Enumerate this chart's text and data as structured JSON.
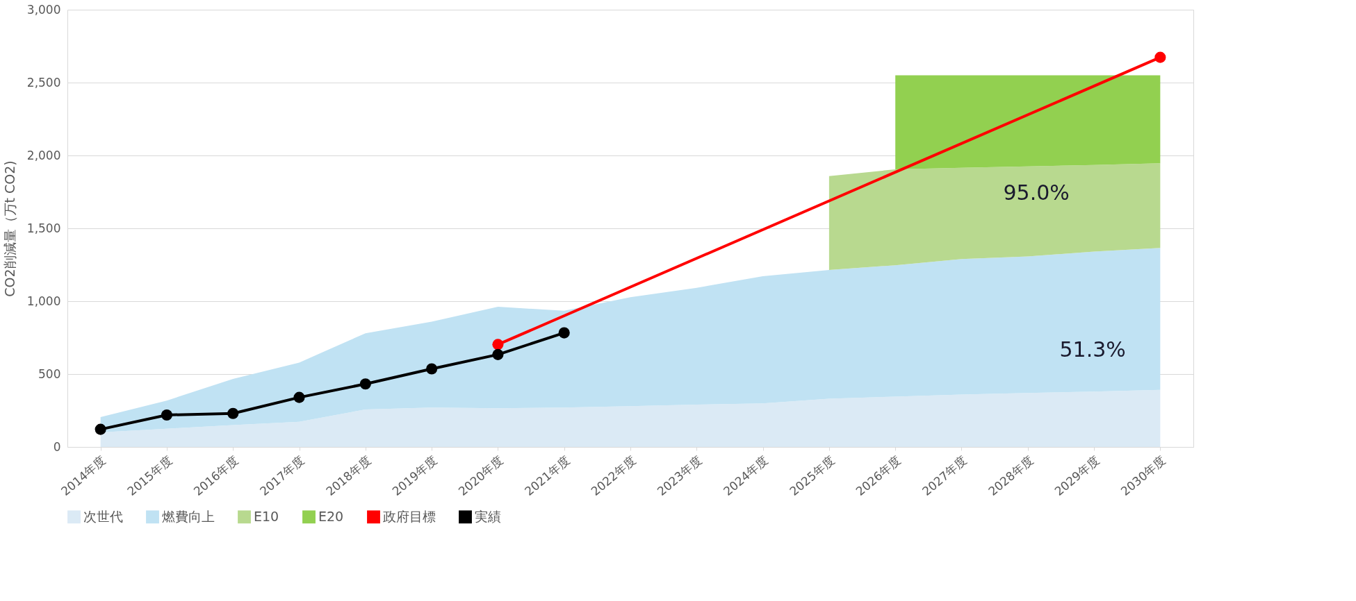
{
  "chart_data": {
    "type": "area",
    "ylabel": "CO2削減量（万t CO2)",
    "categories": [
      "2014年度",
      "2015年度",
      "2016年度",
      "2017年度",
      "2018年度",
      "2019年度",
      "2020年度",
      "2021年度",
      "2022年度",
      "2023年度",
      "2024年度",
      "2025年度",
      "2026年度",
      "2027年度",
      "2028年度",
      "2029年度",
      "2030年度"
    ],
    "stacked": true,
    "series": [
      {
        "name": "次世代",
        "color": "#dbeaf5",
        "values": [
          100,
          125,
          150,
          173,
          257,
          270,
          266,
          270,
          280,
          290,
          299,
          331,
          345,
          360,
          370,
          380,
          392
        ]
      },
      {
        "name": "燃費向上",
        "color": "#c0e2f3",
        "values": [
          105,
          193,
          317,
          406,
          523,
          590,
          696,
          664,
          747,
          802,
          873,
          883,
          902,
          929,
          937,
          960,
          974
        ]
      },
      {
        "name": "E10",
        "color": "#b8d98f",
        "values": [
          null,
          null,
          null,
          null,
          null,
          null,
          null,
          null,
          null,
          null,
          null,
          644,
          658,
          626,
          618,
          595,
          581
        ]
      },
      {
        "name": "E20",
        "color": "#92d050",
        "values": [
          null,
          null,
          null,
          null,
          null,
          null,
          null,
          null,
          null,
          null,
          null,
          null,
          645,
          635,
          625,
          615,
          603
        ]
      },
      {
        "name": "政府目標",
        "type": "line",
        "marker": "circle",
        "color": "#ff0000",
        "values": [
          null,
          null,
          null,
          null,
          null,
          null,
          703,
          null,
          null,
          null,
          null,
          null,
          null,
          null,
          null,
          null,
          2673
        ]
      },
      {
        "name": "実績",
        "type": "line",
        "marker": "circle",
        "color": "#000000",
        "values": [
          121,
          219,
          230,
          340,
          432,
          536,
          634,
          783,
          null,
          null,
          null,
          null,
          null,
          null,
          null,
          null,
          null
        ]
      }
    ],
    "ylim": [
      0,
      3000
    ],
    "yticks": [
      0,
      {
        "value": 500,
        "label": "500"
      },
      {
        "value": 1000,
        "label": "1,000"
      },
      {
        "value": 1500,
        "label": "1,500"
      },
      {
        "value": 2000,
        "label": "2,000"
      },
      {
        "value": 2500,
        "label": "2,500"
      },
      {
        "value": 3000,
        "label": "3,000"
      }
    ],
    "grid": "y",
    "legend": "bottom",
    "line_style": "solid",
    "annotations": [
      "95.0%",
      "51.3%"
    ]
  }
}
